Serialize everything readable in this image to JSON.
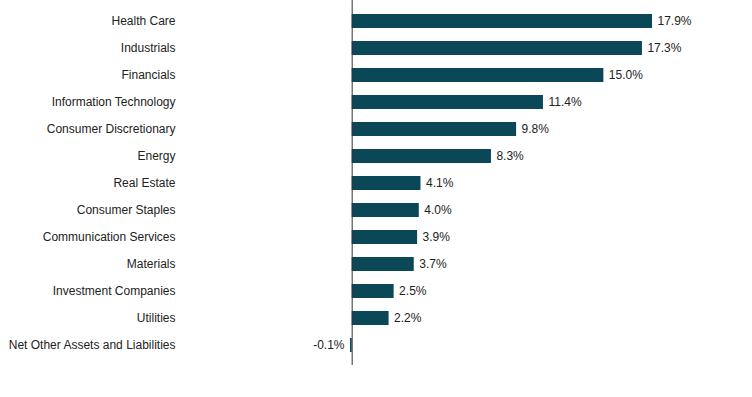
{
  "chart_data": {
    "type": "bar",
    "orientation": "horizontal",
    "categories": [
      "Health Care",
      "Industrials",
      "Financials",
      "Information Technology",
      "Consumer Discretionary",
      "Energy",
      "Real Estate",
      "Consumer Staples",
      "Communication Services",
      "Materials",
      "Investment Companies",
      "Utilities",
      "Net Other Assets and Liabilities"
    ],
    "values": [
      17.9,
      17.3,
      15.0,
      11.4,
      9.8,
      8.3,
      4.1,
      4.0,
      3.9,
      3.7,
      2.5,
      2.2,
      -0.1
    ],
    "value_labels": [
      "17.9%",
      "17.3%",
      "15.0%",
      "11.4%",
      "9.8%",
      "8.3%",
      "4.1%",
      "4.0%",
      "3.9%",
      "3.7%",
      "2.5%",
      "2.2%",
      "-0.1%"
    ],
    "color": "#0b4857",
    "data_labels": true,
    "tick_labels": "y",
    "grid": false
  }
}
